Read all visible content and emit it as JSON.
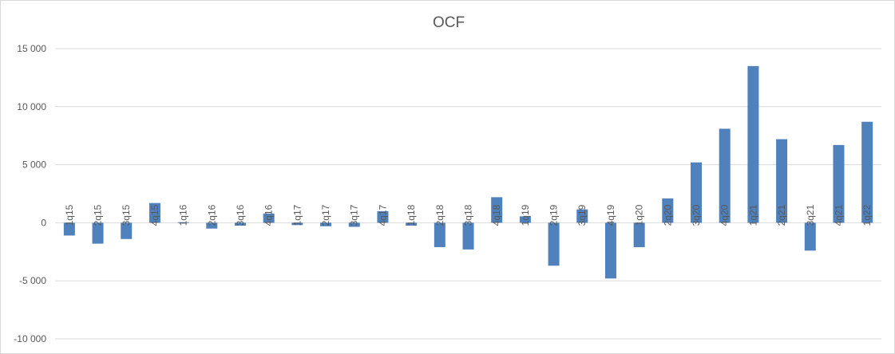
{
  "chart_data": {
    "type": "bar",
    "title": "OCF",
    "xlabel": "",
    "ylabel": "",
    "ylim": [
      -10000,
      15000
    ],
    "yticks": [
      15000,
      10000,
      5000,
      0,
      -5000,
      -10000
    ],
    "ytick_labels": [
      "15 000",
      "10 000",
      "5 000",
      "0",
      "-5 000",
      "-10 000"
    ],
    "grid": true,
    "legend": "none",
    "bar_color": "#4f81bd",
    "categories": [
      "1q15",
      "2q15",
      "3q15",
      "4q15",
      "1q16",
      "2q16",
      "3q16",
      "4q16",
      "1q17",
      "2q17",
      "3q17",
      "4q17",
      "1q18",
      "2q18",
      "3q18",
      "4q18",
      "1q19",
      "2q19",
      "3q19",
      "4q19",
      "1q20",
      "2q20",
      "3q20",
      "4q20",
      "1q21",
      "2q21",
      "3q21",
      "4q21",
      "1q22"
    ],
    "values": [
      -1100,
      -1800,
      -1400,
      1700,
      50,
      -500,
      -250,
      800,
      -200,
      -300,
      -350,
      1000,
      -250,
      -2100,
      -2300,
      2200,
      550,
      -3700,
      1150,
      -4800,
      -2100,
      2100,
      5200,
      8100,
      13500,
      7200,
      -2400,
      6700,
      8700
    ]
  }
}
